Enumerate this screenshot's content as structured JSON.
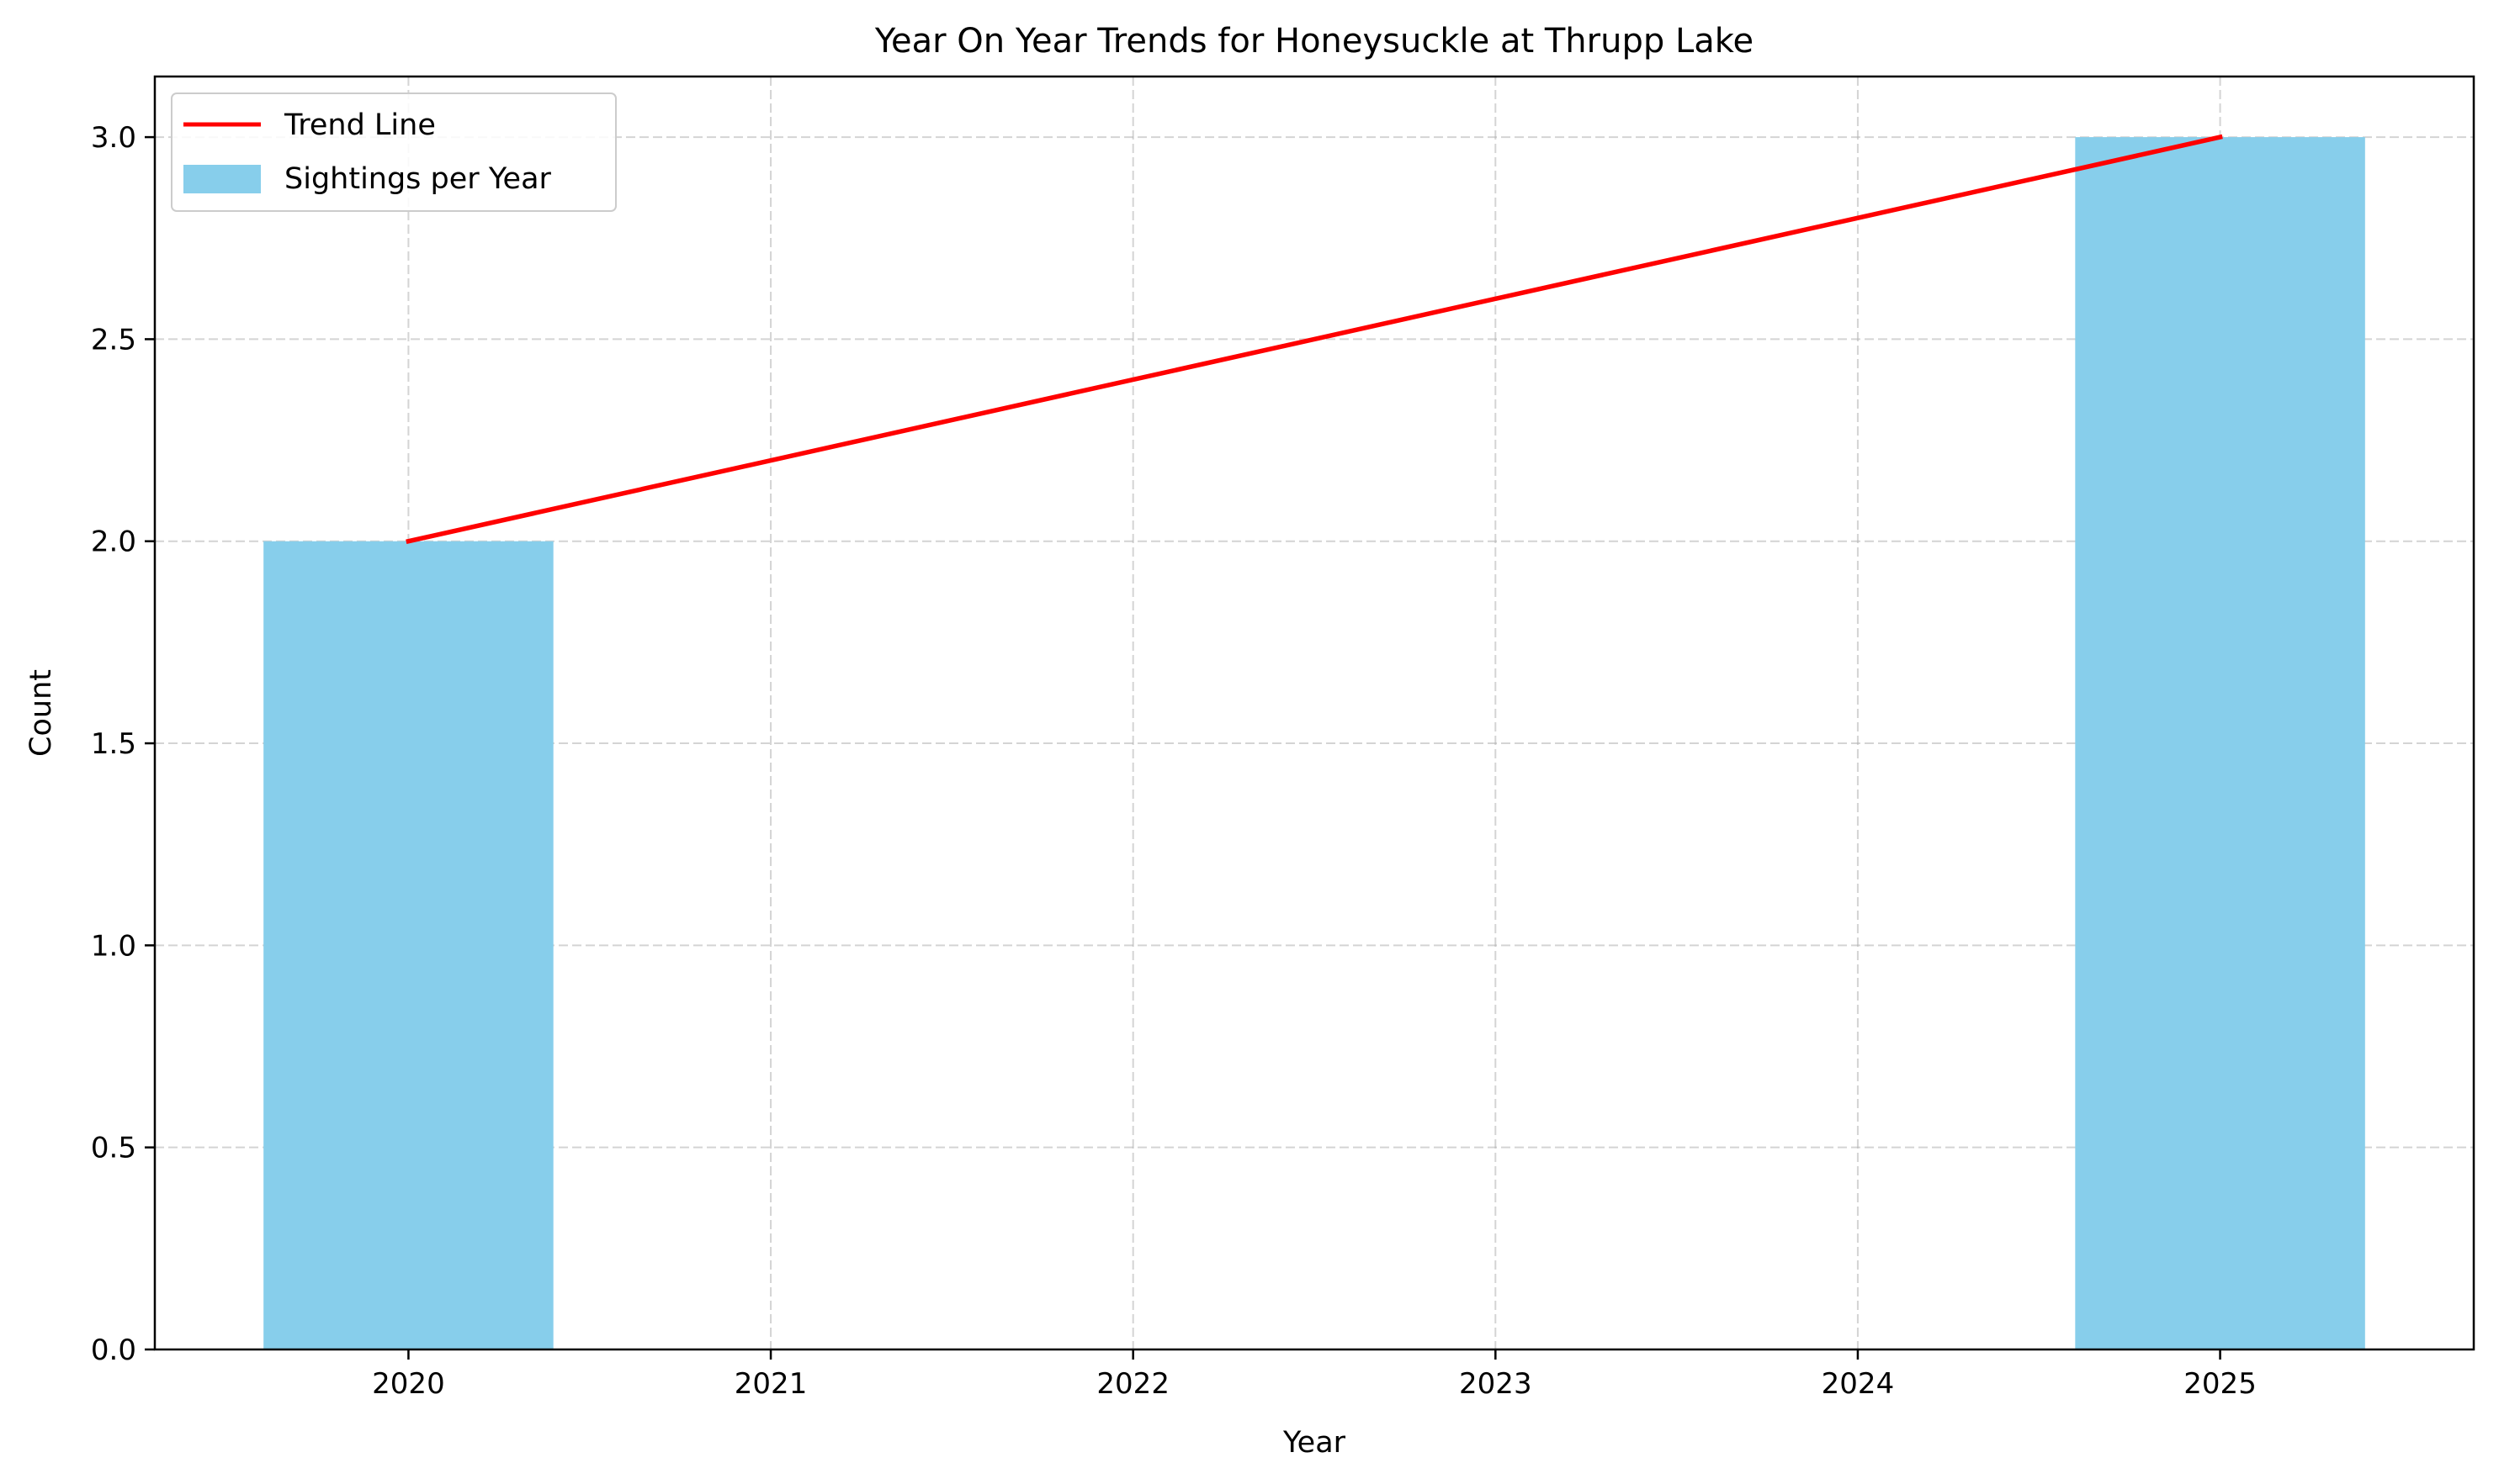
{
  "chart_data": {
    "type": "bar",
    "title": "Year On Year Trends for Honeysuckle at Thrupp Lake",
    "xlabel": "Year",
    "ylabel": "Count",
    "x_ticks": [
      "2020",
      "2021",
      "2022",
      "2023",
      "2024",
      "2025"
    ],
    "y_ticks": [
      "0.0",
      "0.5",
      "1.0",
      "1.5",
      "2.0",
      "2.5",
      "3.0"
    ],
    "xlim": [
      2019.3,
      2025.7
    ],
    "ylim": [
      0,
      3.15
    ],
    "grid": true,
    "legend_position": "top-left",
    "series": [
      {
        "name": "Sightings per Year",
        "kind": "bar",
        "color": "#87ceeb",
        "bar_width": 0.8,
        "points": [
          {
            "x": 2020,
            "y": 2
          },
          {
            "x": 2025,
            "y": 3
          }
        ]
      },
      {
        "name": "Trend Line",
        "kind": "line",
        "color": "#ff0000",
        "points": [
          {
            "x": 2020,
            "y": 2
          },
          {
            "x": 2025,
            "y": 3
          }
        ]
      }
    ]
  }
}
